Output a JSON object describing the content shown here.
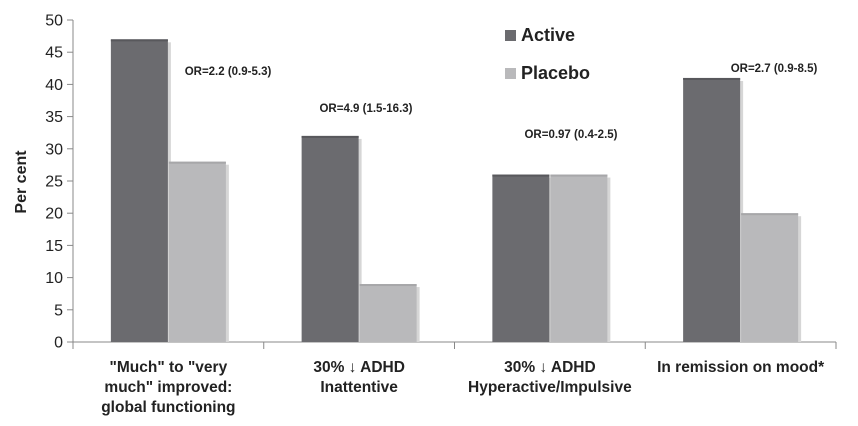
{
  "chart_data": {
    "type": "bar",
    "ylabel": "Per cent",
    "ylim": [
      0,
      50
    ],
    "yticks": [
      "0",
      "5",
      "10",
      "15",
      "20",
      "25",
      "30",
      "35",
      "40",
      "45",
      "50"
    ],
    "categories": [
      [
        "\"Much\" to \"very",
        "much\" improved:",
        "global functioning"
      ],
      [
        "30% ↓ ADHD",
        "Inattentive"
      ],
      [
        "30% ↓ ADHD",
        "Hyperactive/Impulsive"
      ],
      [
        "In remission on mood*"
      ]
    ],
    "series": [
      {
        "name": "Active",
        "color": "#6b6b6f",
        "values": [
          47,
          32,
          26,
          41
        ]
      },
      {
        "name": "Placebo",
        "color": "#b9b9bb",
        "values": [
          28,
          9,
          26,
          20
        ]
      }
    ],
    "annotations": [
      "OR=2.2 (0.9-5.3)",
      "OR=4.9 (1.5-16.3)",
      "OR=0.97 (0.4-2.5)",
      "OR=2.7 (0.9-8.5)"
    ],
    "legend_position": "top-center",
    "grid": false
  }
}
